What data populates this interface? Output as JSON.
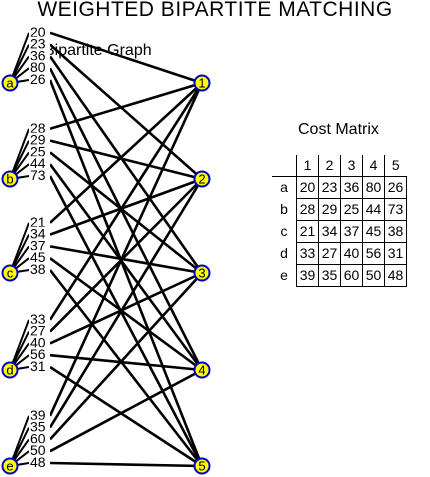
{
  "title": "WEIGHTED BIPARTITE MATCHING",
  "graph": {
    "title": "Bipartite Graph",
    "left_nodes": [
      "a",
      "b",
      "c",
      "d",
      "e"
    ],
    "right_nodes": [
      "1",
      "2",
      "3",
      "4",
      "5"
    ],
    "node_fill": "#ffff00",
    "node_stroke": "#0000cc"
  },
  "matrix": {
    "title": "Cost Matrix",
    "columns": [
      "1",
      "2",
      "3",
      "4",
      "5"
    ],
    "rows": [
      {
        "label": "a",
        "values": [
          "20",
          "23",
          "36",
          "80",
          "26"
        ]
      },
      {
        "label": "b",
        "values": [
          "28",
          "29",
          "25",
          "44",
          "73"
        ]
      },
      {
        "label": "c",
        "values": [
          "21",
          "34",
          "37",
          "45",
          "38"
        ]
      },
      {
        "label": "d",
        "values": [
          "33",
          "27",
          "40",
          "56",
          "31"
        ]
      },
      {
        "label": "e",
        "values": [
          "39",
          "35",
          "60",
          "50",
          "48"
        ]
      }
    ]
  }
}
